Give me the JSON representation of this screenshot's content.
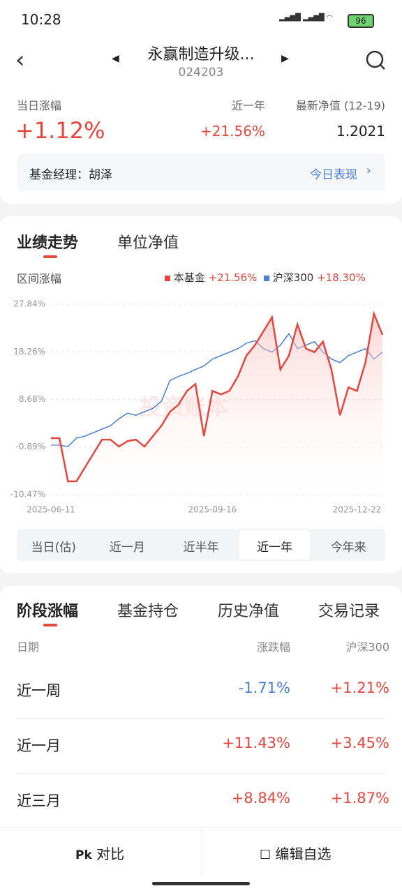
{
  "status": {
    "time": "10:28",
    "battery": "96"
  },
  "header": {
    "title": "永赢制造升级...",
    "code": "024203"
  },
  "summary": {
    "labels": [
      "当日涨幅",
      "近一年",
      "最新净值 (12-19)"
    ],
    "values": [
      "+1.12%",
      "+21.56%",
      "1.2021"
    ]
  },
  "manager": {
    "text": "基金经理：胡泽",
    "link": "今日表现"
  },
  "chart_tabs": [
    "业绩走势",
    "单位净值"
  ],
  "chart_data": {
    "type": "line",
    "ylabel": "区间涨幅",
    "watermark": "投资账本",
    "categories": [
      "2025-06-11",
      null,
      null,
      null,
      null,
      null,
      null,
      null,
      null,
      null,
      null,
      null,
      null,
      null,
      null,
      null,
      null,
      null,
      null,
      "2025-09-16",
      null,
      null,
      null,
      null,
      null,
      null,
      null,
      null,
      null,
      null,
      null,
      null,
      null,
      null,
      null,
      null,
      "2025-12-22",
      null,
      null,
      null
    ],
    "series": [
      {
        "name": "本基金",
        "change": "+21.56%",
        "color": "#e8463d",
        "values": [
          0.9,
          0.9,
          -7.8,
          -7.8,
          -5.0,
          -2.2,
          0.6,
          0.6,
          -0.8,
          0.3,
          0.6,
          -0.8,
          1.3,
          3.4,
          6.2,
          7.6,
          10.4,
          11.8,
          1.3,
          10.4,
          9.7,
          10.4,
          13.3,
          17.5,
          19.6,
          22.4,
          25.2,
          14.7,
          17.5,
          23.8,
          18.9,
          18.2,
          20.3,
          14.7,
          5.5,
          11.1,
          10.4,
          16.1,
          25.9,
          21.7
        ]
      },
      {
        "name": "沪深300",
        "change": "+18.30%",
        "color": "#4a7fd6",
        "values": [
          -0.5,
          -0.5,
          -0.8,
          0.9,
          1.3,
          2.0,
          2.7,
          3.4,
          4.8,
          5.9,
          5.5,
          6.2,
          6.9,
          8.3,
          12.5,
          13.3,
          13.9,
          14.7,
          15.4,
          16.8,
          17.5,
          18.2,
          18.9,
          20.0,
          20.5,
          18.9,
          18.2,
          19.6,
          21.9,
          18.9,
          19.6,
          20.3,
          18.2,
          16.8,
          16.1,
          17.5,
          18.2,
          18.9,
          16.8,
          18.2
        ]
      }
    ],
    "ylim": [
      -10.47,
      27.84
    ],
    "yticks": [
      {
        "value": -10.47,
        "label": "-10.47%"
      },
      {
        "value": -0.89,
        "label": "-0.89%"
      },
      {
        "value": 8.68,
        "label": "8.68%"
      },
      {
        "value": 18.26,
        "label": "18.26%"
      },
      {
        "value": 27.84,
        "label": "27.84%"
      }
    ],
    "grid": true
  },
  "range_tabs": {
    "items": [
      "当日(估)",
      "近一月",
      "近半年",
      "近一年",
      "今年来"
    ],
    "active": 3
  },
  "section_tabs": [
    "阶段涨幅",
    "基金持仓",
    "历史净值",
    "交易记录"
  ],
  "table": {
    "header": [
      "日期",
      "涨跌幅",
      "沪深300"
    ],
    "rows": [
      [
        "近一周",
        "-1.71%",
        "+1.21%"
      ],
      [
        "近一月",
        "+11.43%",
        "+3.45%"
      ],
      [
        "近三月",
        "+8.84%",
        "+1.87%"
      ]
    ]
  },
  "bottom": [
    "对比",
    "编辑自选"
  ]
}
